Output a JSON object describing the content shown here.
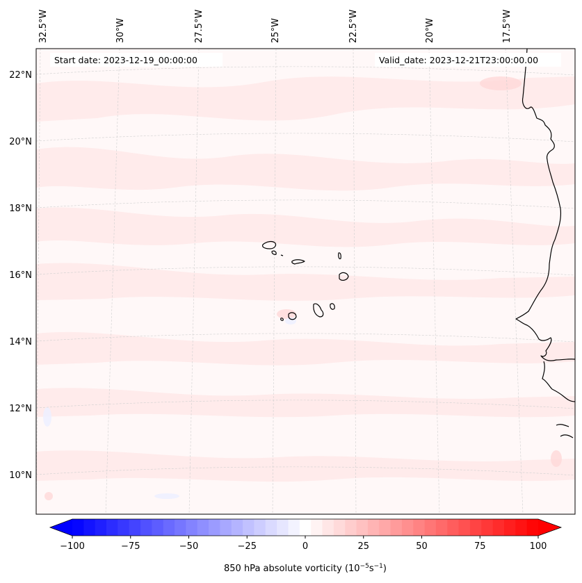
{
  "header": {
    "start_date": "Start date: 2023-12-19_00:00:00",
    "valid_date": "Valid_date: 2023-12-21T23:00:00.00"
  },
  "axes": {
    "lon_labels": [
      "32.5°W",
      "30°W",
      "27.5°W",
      "25°W",
      "22.5°W",
      "20°W",
      "17.5°W"
    ],
    "lat_labels": [
      "22°N",
      "20°N",
      "18°N",
      "16°N",
      "14°N",
      "12°N",
      "10°N"
    ]
  },
  "colorbar": {
    "label_main": "850 hPa absolute vorticity (10",
    "label_exp1": "−5",
    "label_mid": "s",
    "label_exp2": "−1",
    "label_end": ")",
    "ticks": [
      "−100",
      "−75",
      "−50",
      "−25",
      "0",
      "25",
      "50",
      "75",
      "100"
    ],
    "min": -100,
    "max": 100,
    "levels": 41,
    "color_low": "#0000ff",
    "color_mid": "#ffffff",
    "color_high": "#ff0000"
  },
  "map": {
    "field_background": "#fff8f8",
    "field_pink": "#ffe6e6",
    "coastline_color": "#000000"
  }
}
